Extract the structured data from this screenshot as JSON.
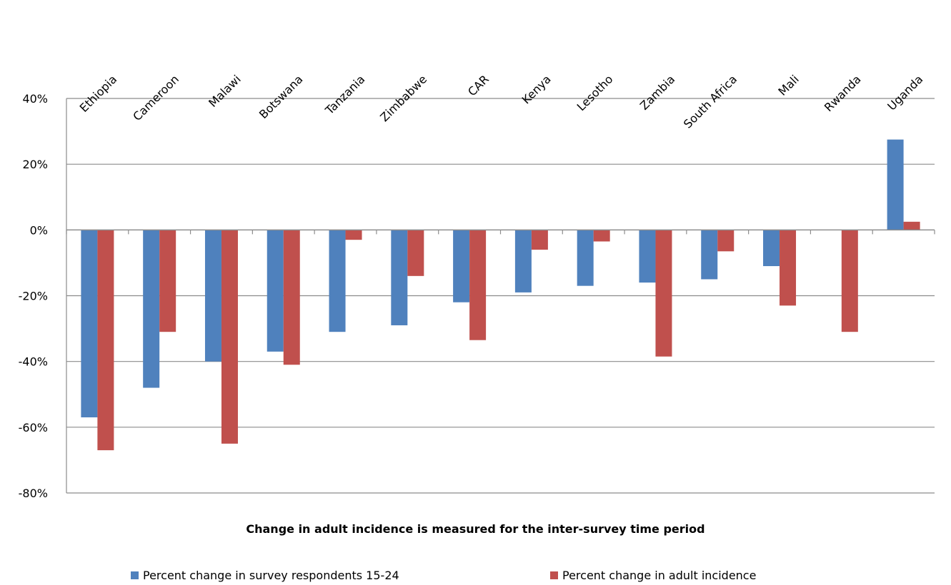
{
  "chart_data": {
    "type": "bar",
    "title": "",
    "xlabel": "Change in adult incidence is measured for the inter-survey time period",
    "ylabel": "",
    "ylim": [
      -80,
      40
    ],
    "yticks": [
      40,
      20,
      0,
      -20,
      -40,
      -60,
      -80
    ],
    "ytick_labels": [
      "40%",
      "20%",
      "0%",
      "-20%",
      "-40%",
      "-60%",
      "-80%"
    ],
    "categories": [
      "Ethiopia",
      "Cameroon",
      "Malawi",
      "Botswana",
      "Tanzania",
      "Zimbabwe",
      "CAR",
      "Kenya",
      "Lesotho",
      "Zambia",
      "South Africa",
      "Mali",
      "Rwanda",
      "Uganda"
    ],
    "category_label_position": "top, rotated",
    "grid": true,
    "legend_position": "bottom",
    "series": [
      {
        "name": "Percent change in survey respondents 15-24",
        "color": "#4f81bd",
        "values": [
          -57,
          -48,
          -40,
          -37,
          -31,
          -29,
          -22,
          -19,
          -17,
          -16,
          -15,
          -11,
          0,
          27.5
        ]
      },
      {
        "name": "Percent change in adult incidence",
        "color": "#c0504d",
        "values": [
          -67,
          -31,
          -65,
          -41,
          -3,
          -14,
          -33.5,
          -6,
          -3.5,
          -38.5,
          -6.5,
          -23,
          -31,
          2.5
        ]
      }
    ]
  }
}
